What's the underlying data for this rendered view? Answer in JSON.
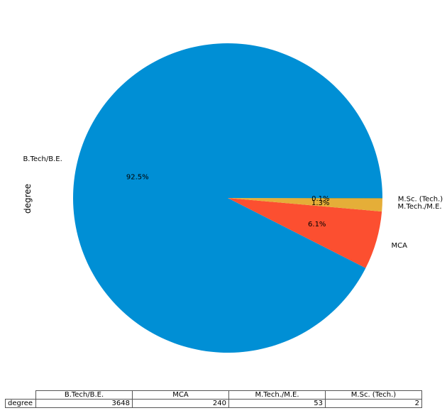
{
  "chart_data": {
    "type": "pie",
    "ylabel": "degree",
    "slices": [
      {
        "label": "B.Tech/B.E.",
        "value": 3648,
        "pct_label": "92.5%",
        "color": "#008fd5"
      },
      {
        "label": "MCA",
        "value": 240,
        "pct_label": "6.1%",
        "color": "#fc4f30"
      },
      {
        "label": "M.Tech./M.E.",
        "value": 53,
        "pct_label": "1.3%",
        "color": "#e5ae38"
      },
      {
        "label": "M.Sc. (Tech.)",
        "value": 2,
        "pct_label": "0.1%",
        "color": "#6d904f"
      }
    ],
    "table": {
      "columns": [
        "B.Tech/B.E.",
        "MCA",
        "M.Tech./M.E.",
        "M.Sc. (Tech.)"
      ],
      "row_label": "degree",
      "values": [
        "3648",
        "240",
        "53",
        "2"
      ]
    }
  }
}
